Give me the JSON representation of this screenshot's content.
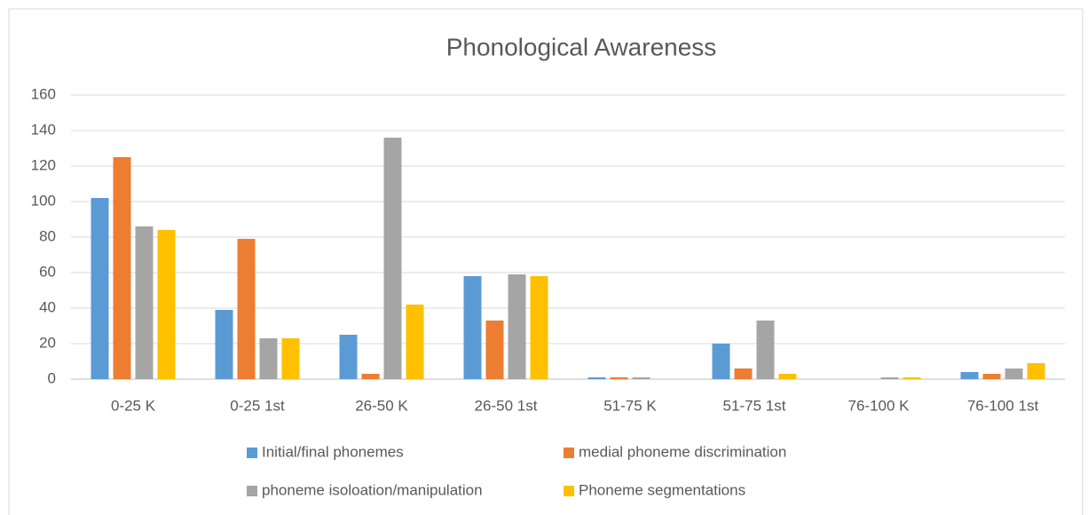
{
  "chart_data": {
    "type": "bar",
    "title": "Phonological Awareness",
    "categories": [
      "0-25 K",
      "0-25 1st",
      "26-50 K",
      "26-50 1st",
      "51-75 K",
      "51-75 1st",
      "76-100 K",
      "76-100 1st"
    ],
    "series": [
      {
        "name": "Initial/final phonemes",
        "color": "#5b9bd5",
        "values": [
          102,
          39,
          25,
          58,
          1,
          20,
          0,
          4
        ]
      },
      {
        "name": "medial phoneme discrimination",
        "color": "#ed7d31",
        "values": [
          125,
          79,
          3,
          33,
          1,
          6,
          0,
          3
        ]
      },
      {
        "name": "phoneme isoloation/manipulation",
        "color": "#a5a5a5",
        "values": [
          86,
          23,
          136,
          59,
          1,
          33,
          1,
          6
        ]
      },
      {
        "name": "Phoneme segmentations",
        "color": "#ffc000",
        "values": [
          84,
          23,
          42,
          58,
          0,
          3,
          1,
          9
        ]
      }
    ],
    "ylim": [
      0,
      160
    ],
    "yticks": [
      0,
      20,
      40,
      60,
      80,
      100,
      120,
      140,
      160
    ],
    "grid": true,
    "legend": "bottom"
  }
}
